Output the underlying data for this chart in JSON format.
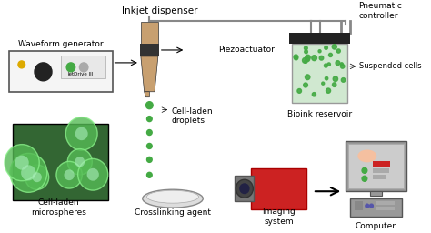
{
  "bg_color": "#ffffff",
  "labels": {
    "inkjet_dispenser": "Inkjet dispenser",
    "waveform_generator": "Waveform generator",
    "piezoactuator": "Piezoactuator",
    "cell_laden_droplets": "Cell-laden\ndroplets",
    "cell_laden_microspheres": "Cell-laden\nmicrospheres",
    "crosslinking_agent": "Crosslinking agent",
    "bioink_reservoir": "Bioink reservoir",
    "suspended_cells": "Suspended cells",
    "pneumatic_controller": "Pneumatic\ncontroller",
    "imaging_system": "Imaging\nsystem",
    "computer": "Computer",
    "jetdrive": "JetDrive III"
  },
  "colors": {
    "nozzle_body": "#c8a070",
    "nozzle_dark": "#333333",
    "reservoir_body": "#e0e0e0",
    "reservoir_top": "#222222",
    "reservoir_liquid": "#d0e8d0",
    "cell_green": "#44aa44",
    "camera_red": "#cc2222",
    "camera_gray": "#777777",
    "computer_gray": "#999999",
    "computer_dark": "#555555",
    "computer_screen": "#cccccc",
    "screen_highlight": "#f5c0a0",
    "screen_red": "#cc2222",
    "arrow_gray": "#888888",
    "line_gray": "#888888",
    "box_border": "#555555",
    "generator_bg": "#f5f5f5",
    "dot_green": "#44aa44",
    "dish_color": "#dddddd",
    "micro_bg": "#336633"
  },
  "font_size": 7
}
